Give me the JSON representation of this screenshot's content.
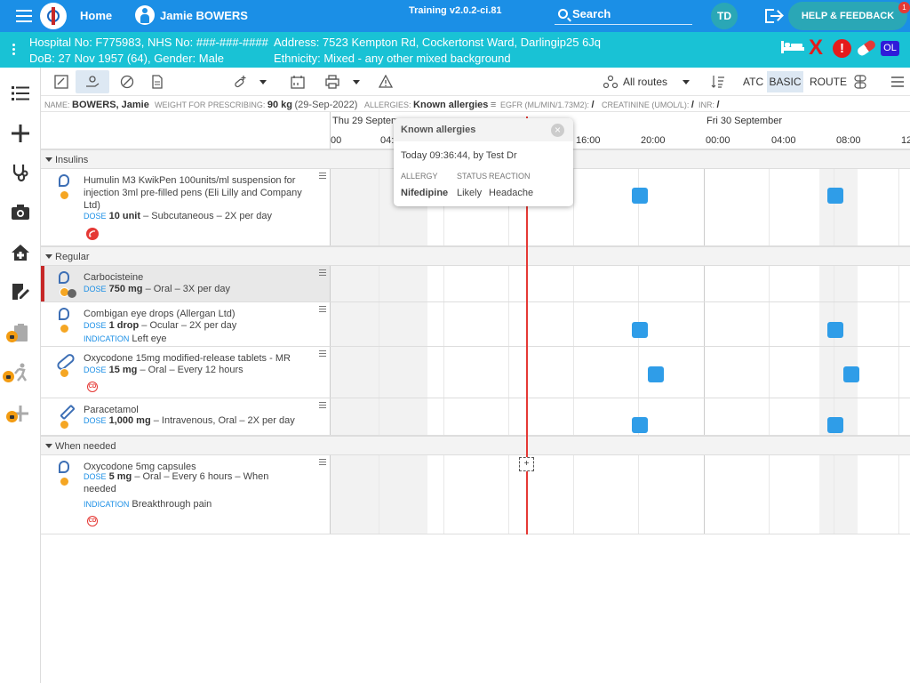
{
  "app": {
    "home_label": "Home",
    "patient_name": "Jamie BOWERS",
    "version": "Training v2.0.2-ci.81",
    "search_label": "Search",
    "user_initials": "TD",
    "help_label": "HELP & FEEDBACK",
    "notification_count": "1"
  },
  "banner": {
    "hospital_no": "Hospital No: F775983, NHS No: ###-###-####",
    "address": "Address: 7523 Kempton Rd, Cockertonst Ward, Darlingip25 6Jq",
    "dob": "DoB: 27 Nov 1957 (64), Gender: Male",
    "ethnicity": "Ethnicity: Mixed - any other mixed background",
    "x_mark": "X",
    "alert_mark": "!",
    "ol_badge": "OL"
  },
  "toolbar": {
    "routes_label": "All routes",
    "view_atc": "ATC",
    "view_basic": "BASIC",
    "view_route": "ROUTE"
  },
  "info": {
    "name_label": "NAME:",
    "name_value": "BOWERS, Jamie",
    "weight_label": "WEIGHT FOR PRESCRIBING:",
    "weight_value": "90 kg",
    "weight_date": "(29-Sep-2022)",
    "allergies_label": "ALLERGIES:",
    "allergies_value": "Known allergies",
    "egfr_label": "EGFR (ML/MIN/1.73M2):",
    "egfr_value": "/",
    "creatinine_label": "CREATININE (UMOL/L):",
    "creatinine_value": "/",
    "inr_label": "INR:",
    "inr_value": "/"
  },
  "timeline": {
    "day1": "Thu 29 Septem",
    "day2": "Fri 30 September",
    "times": [
      "00",
      "04:",
      "16:00",
      "20:00",
      "00:00",
      "04:00",
      "08:00",
      "12"
    ]
  },
  "sections": {
    "insulins": "Insulins",
    "regular": "Regular",
    "when_needed": "When needed"
  },
  "meds": [
    {
      "name": "Humulin M3 KwikPen 100units/ml suspension for injection 3ml pre-filled pens (Eli Lilly and Company Ltd)",
      "dose_key": "DOSE",
      "dose": "10 unit",
      "route": "– Subcutaneous – 2X per day"
    },
    {
      "name": "Carbocisteine",
      "dose_key": "DOSE",
      "dose": "750 mg",
      "route": "– Oral – 3X per day"
    },
    {
      "name": "Combigan eye drops (Allergan Ltd)",
      "dose_key": "DOSE",
      "dose": "1 drop",
      "route": "– Ocular – 2X per day",
      "ind_key": "INDICATION",
      "indication": "Left eye"
    },
    {
      "name": "Oxycodone 15mg modified-release tablets - MR",
      "dose_key": "DOSE",
      "dose": "15 mg",
      "route": "– Oral – Every 12 hours",
      "cd": "CD"
    },
    {
      "name": "Paracetamol",
      "dose_key": "DOSE",
      "dose": "1,000 mg",
      "route": "– Intravenous, Oral – 2X per day"
    },
    {
      "name": "Oxycodone 5mg capsules",
      "dose_key": "DOSE",
      "dose": "5 mg",
      "route": "– Oral – Every 6 hours – When needed",
      "ind_key": "INDICATION",
      "indication": "Breakthrough pain",
      "cd": "CD"
    }
  ],
  "allergy_popover": {
    "title": "Known allergies",
    "recorded": "Today 09:36:44, by Test Dr",
    "col_allergy": "ALLERGY",
    "col_status": "STATUS",
    "col_reaction": "REACTION",
    "allergy": "Nifedipine",
    "status": "Likely",
    "reaction": "Headache",
    "close": "×"
  },
  "add_cell_symbol": "+",
  "colors": {
    "primary": "#1b8fe6",
    "banner": "#19c2d5",
    "dose": "#2f9de8",
    "now_line": "#e53935",
    "alert": "#e51b1b"
  }
}
